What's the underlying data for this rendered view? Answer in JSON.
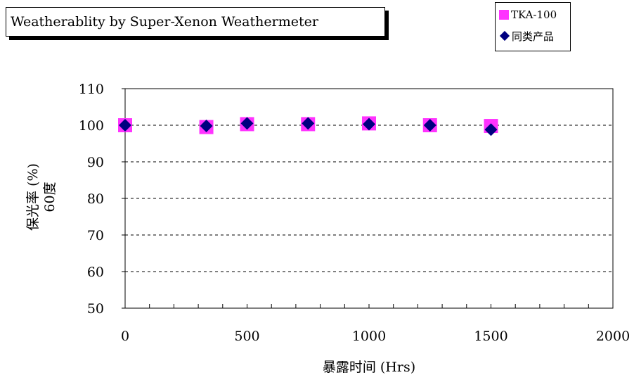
{
  "chart_data": {
    "type": "scatter",
    "title": "Weatherablity by Super-Xenon Weathermeter",
    "xlabel": "暴露时间 (Hrs)",
    "ylabel_line1": "保光率 (%)",
    "ylabel_line2": "60度",
    "xlim": [
      0,
      2000
    ],
    "ylim": [
      50,
      110
    ],
    "x_ticks": [
      0,
      500,
      1000,
      1500,
      2000
    ],
    "x_minor_step": 100,
    "y_ticks": [
      50,
      60,
      70,
      80,
      90,
      100,
      110
    ],
    "grid": "horizontal dashed",
    "legend_position": "top-right",
    "series": [
      {
        "name": "TKA-100",
        "marker": "square",
        "color": "#ff33ff",
        "x": [
          0,
          333,
          500,
          750,
          1000,
          1250,
          1500
        ],
        "y": [
          100,
          99.5,
          100.3,
          100.3,
          100.5,
          100.0,
          99.8
        ]
      },
      {
        "name": "同类产品",
        "marker": "diamond",
        "color": "#000080",
        "x": [
          0,
          333,
          500,
          750,
          1000,
          1250,
          1500
        ],
        "y": [
          100,
          99.8,
          100.5,
          100.5,
          100.3,
          100.0,
          98.8
        ]
      }
    ]
  }
}
